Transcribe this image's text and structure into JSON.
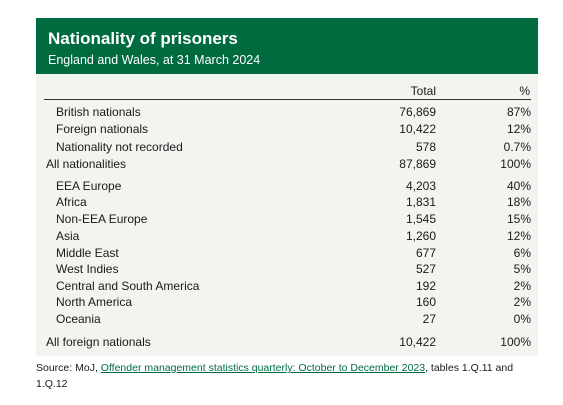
{
  "header": {
    "title": "Nationality of prisoners",
    "subtitle": "England and Wales, at 31 March 2024"
  },
  "columns": {
    "total": "Total",
    "pct": "%"
  },
  "rows": [
    {
      "label": "British nationals",
      "total": "76,869",
      "pct": "87%",
      "indent": true
    },
    {
      "label": "Foreign nationals",
      "total": "10,422",
      "pct": "12%",
      "indent": true
    },
    {
      "label": "Nationality not recorded",
      "total": "578",
      "pct": "0.7%",
      "indent": true
    },
    {
      "label": "All nationalities",
      "total": "87,869",
      "pct": "100%",
      "indent": false
    },
    {
      "label": "EEA Europe",
      "total": "4,203",
      "pct": "40%",
      "indent": true
    },
    {
      "label": "Africa",
      "total": "1,831",
      "pct": "18%",
      "indent": true
    },
    {
      "label": "Non-EEA Europe",
      "total": "1,545",
      "pct": "15%",
      "indent": true
    },
    {
      "label": "Asia",
      "total": "1,260",
      "pct": "12%",
      "indent": true
    },
    {
      "label": "Middle East",
      "total": "677",
      "pct": "6%",
      "indent": true
    },
    {
      "label": "West Indies",
      "total": "527",
      "pct": "5%",
      "indent": true
    },
    {
      "label": "Central and South America",
      "total": "192",
      "pct": "2%",
      "indent": true
    },
    {
      "label": "North America",
      "total": "160",
      "pct": "2%",
      "indent": true
    },
    {
      "label": "Oceania",
      "total": "27",
      "pct": "0%",
      "indent": true
    },
    {
      "label": "All foreign nationals",
      "total": "10,422",
      "pct": "100%",
      "indent": false
    }
  ],
  "source": {
    "prefix": "Source:  MoJ, ",
    "link_text": "Offender management statistics quarterly: October to December 2023",
    "suffix": ", tables 1.Q.11 and 1.Q.12"
  },
  "colors": {
    "header_bg": "#006b3f",
    "card_bg": "#f2f4f0",
    "link": "#006b3f"
  }
}
